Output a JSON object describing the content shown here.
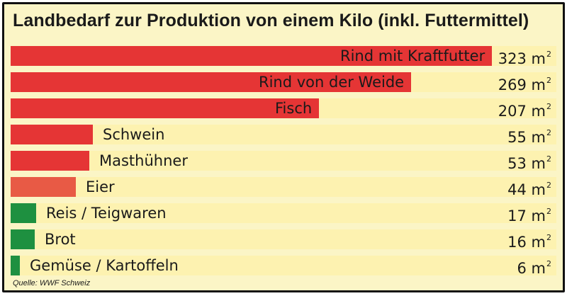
{
  "chart_data": {
    "type": "bar",
    "orientation": "horizontal",
    "title": "Landbedarf zur Produktion von einem Kilo (inkl. Futtermittel)",
    "categories": [
      "Rind mit Kraftfutter",
      "Rind von der Weide",
      "Fisch",
      "Schwein",
      "Masthühner",
      "Eier",
      "Reis / Teigwaren",
      "Brot",
      "Gemüse / Kartoffeln"
    ],
    "values": [
      323,
      269,
      207,
      55,
      53,
      44,
      17,
      16,
      6
    ],
    "value_labels": [
      "323 m",
      "269 m",
      "207 m",
      "55 m",
      "53 m",
      "44 m",
      "17 m",
      "16 m",
      "6 m"
    ],
    "unit_superscript": "2",
    "colors": [
      "#e53535",
      "#e53535",
      "#e53535",
      "#e53535",
      "#e53535",
      "#e85a45",
      "#1e9040",
      "#1e9040",
      "#1e9040"
    ],
    "xlim": [
      0,
      323
    ],
    "grid": false,
    "source": "Quelle: WWF Schweiz"
  },
  "colors": {
    "background": "#fbf5c6",
    "row_background": "#fdf2b0",
    "border": "#111111"
  }
}
